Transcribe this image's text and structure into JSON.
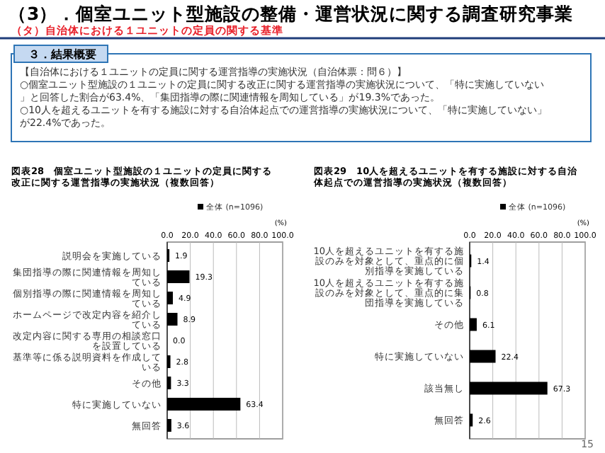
{
  "chart_data": [
    {
      "type": "other",
      "title": "（3）．個室ユニット型施設の整備・運営状況に関する調査研究事業",
      "subtitle": "（タ）自治体における１ユニットの定員の関する基準",
      "annotations": [
        "３．結果概要",
        "【自治体における１ユニットの定員に関する運営指導の実施状況（自治体票：問６）】",
        "○個室ユニット型施設の１ユニットの定員に関する改正に関する運営指導の実施状況について、「特に実施していない」と回答した割合が63.4%、「集団指導の際に関連情報を周知している」が19.3%であった。",
        "○10人を超えるユニットを有する施設に対する自治体起点での運営指導の実施状況について、「特に実施していない」が22.4%であった。"
      ]
    },
    {
      "type": "bar",
      "orientation": "horizontal",
      "title": "図表28　個室ユニット型施設の１ユニットの定員に関する改正に関する運営指導の実施状況（複数回答）",
      "xlabel": "(%)",
      "categories": [
        "説明会を実施している",
        "集団指導の際に関連情報を周知している",
        "個別指導の際に関連情報を周知している",
        "ホームページで改定内容を紹介している",
        "改定内容に関する専用の相談窓口を設置している",
        "基準等に係る説明資料を作成している",
        "その他",
        "特に実施していない",
        "無回答"
      ],
      "series": [
        {
          "name": "全体 (n=1096)",
          "color": "#000000",
          "values": [
            1.9,
            19.3,
            4.9,
            8.9,
            0,
            2.8,
            3.3,
            63.4,
            3.6
          ],
          "value_labels": [
            "1.9",
            "19.3",
            "4.9",
            "8.9",
            "0.0",
            "2.8",
            "3.3",
            "63.4",
            "3.6"
          ]
        }
      ],
      "xlim": [
        0,
        100
      ],
      "xticks": [
        {
          "value": 0,
          "label": "0.0"
        },
        {
          "value": 20,
          "label": "20.0"
        },
        {
          "value": 40,
          "label": "40.0"
        },
        {
          "value": 60,
          "label": "60.0"
        },
        {
          "value": 80,
          "label": "80.0"
        },
        {
          "value": 100,
          "label": "100.0"
        }
      ],
      "grid": "x",
      "legend": "top right"
    },
    {
      "type": "bar",
      "orientation": "horizontal",
      "title": "図表29　10人を超えるユニットを有する施設に対する自治体起点での運営指導の実施状況（複数回答）",
      "xlabel": "(%)",
      "categories": [
        "10人を超えるユニットを有する施設のみを対象として、重点的に個別指導を実施している",
        "10人を超えるユニットを有する施設のみを対象として、重点的に集団指導を実施している",
        "その他",
        "特に実施していない",
        "該当無し",
        "無回答"
      ],
      "series": [
        {
          "name": "全体 (n=1096)",
          "color": "#000000",
          "values": [
            1.4,
            0.8,
            6.1,
            22.4,
            67.3,
            2.6
          ],
          "value_labels": [
            "1.4",
            "0.8",
            "6.1",
            "22.4",
            "67.3",
            "2.6"
          ]
        }
      ],
      "xlim": [
        0,
        100
      ],
      "xticks": [
        {
          "value": 0,
          "label": "0.0"
        },
        {
          "value": 20,
          "label": "20.0"
        },
        {
          "value": 40,
          "label": "40.0"
        },
        {
          "value": 60,
          "label": "60.0"
        },
        {
          "value": 80,
          "label": "80.0"
        },
        {
          "value": 100,
          "label": "100.0"
        }
      ],
      "grid": "x",
      "legend": "top right",
      "annotations": [
        "15"
      ]
    }
  ]
}
